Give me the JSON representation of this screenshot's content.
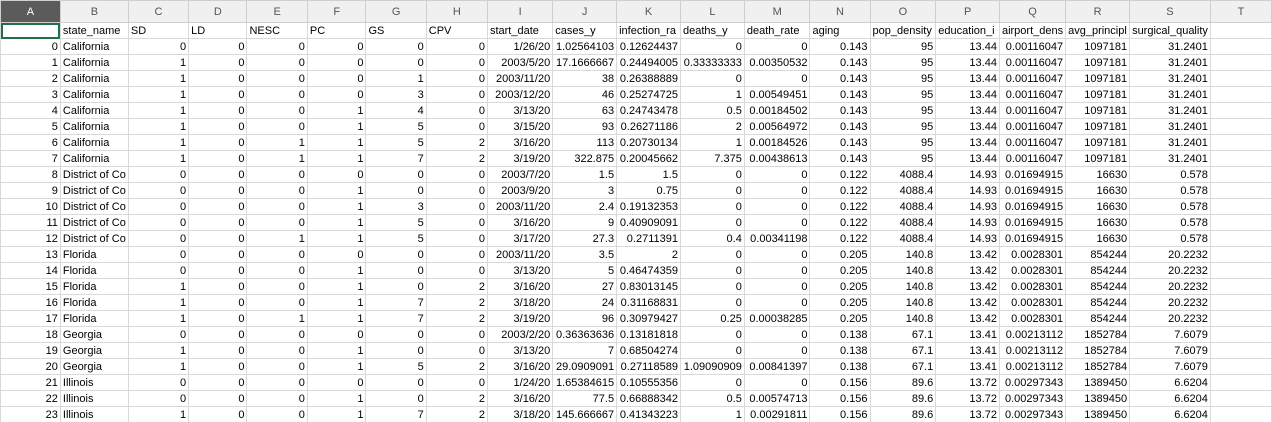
{
  "columns": [
    "A",
    "B",
    "C",
    "D",
    "E",
    "F",
    "G",
    "H",
    "I",
    "J",
    "K",
    "L",
    "M",
    "N",
    "O",
    "P",
    "Q",
    "R",
    "S",
    "T"
  ],
  "selected_column": "A",
  "header_row": [
    "",
    "state_name",
    "SD",
    "LD",
    "NESC",
    "PC",
    "GS",
    "CPV",
    "start_date",
    "cases_y",
    "infection_ra",
    "deaths_y",
    "death_rate",
    "aging",
    "pop_density",
    "education_i",
    "airport_dens",
    "avg_principl",
    "surgical_quality",
    ""
  ],
  "rows": [
    [
      "0",
      "California",
      "0",
      "0",
      "0",
      "0",
      "0",
      "0",
      "1/26/20",
      "1.02564103",
      "0.12624437",
      "0",
      "0",
      "0.143",
      "95",
      "13.44",
      "0.00116047",
      "1097181",
      "31.2401"
    ],
    [
      "1",
      "California",
      "1",
      "0",
      "0",
      "0",
      "0",
      "0",
      "2003/5/20",
      "17.1666667",
      "0.24494005",
      "0.33333333",
      "0.00350532",
      "0.143",
      "95",
      "13.44",
      "0.00116047",
      "1097181",
      "31.2401"
    ],
    [
      "2",
      "California",
      "1",
      "0",
      "0",
      "0",
      "1",
      "0",
      "2003/11/20",
      "38",
      "0.26388889",
      "0",
      "0",
      "0.143",
      "95",
      "13.44",
      "0.00116047",
      "1097181",
      "31.2401"
    ],
    [
      "3",
      "California",
      "1",
      "0",
      "0",
      "0",
      "3",
      "0",
      "2003/12/20",
      "46",
      "0.25274725",
      "1",
      "0.00549451",
      "0.143",
      "95",
      "13.44",
      "0.00116047",
      "1097181",
      "31.2401"
    ],
    [
      "4",
      "California",
      "1",
      "0",
      "0",
      "1",
      "4",
      "0",
      "3/13/20",
      "63",
      "0.24743478",
      "0.5",
      "0.00184502",
      "0.143",
      "95",
      "13.44",
      "0.00116047",
      "1097181",
      "31.2401"
    ],
    [
      "5",
      "California",
      "1",
      "0",
      "0",
      "1",
      "5",
      "0",
      "3/15/20",
      "93",
      "0.26271186",
      "2",
      "0.00564972",
      "0.143",
      "95",
      "13.44",
      "0.00116047",
      "1097181",
      "31.2401"
    ],
    [
      "6",
      "California",
      "1",
      "0",
      "1",
      "1",
      "5",
      "2",
      "3/16/20",
      "113",
      "0.20730134",
      "1",
      "0.00184526",
      "0.143",
      "95",
      "13.44",
      "0.00116047",
      "1097181",
      "31.2401"
    ],
    [
      "7",
      "California",
      "1",
      "0",
      "1",
      "1",
      "7",
      "2",
      "3/19/20",
      "322.875",
      "0.20045662",
      "7.375",
      "0.00438613",
      "0.143",
      "95",
      "13.44",
      "0.00116047",
      "1097181",
      "31.2401"
    ],
    [
      "8",
      "District of Co",
      "0",
      "0",
      "0",
      "0",
      "0",
      "0",
      "2003/7/20",
      "1.5",
      "1.5",
      "0",
      "0",
      "0.122",
      "4088.4",
      "14.93",
      "0.01694915",
      "16630",
      "0.578"
    ],
    [
      "9",
      "District of Co",
      "0",
      "0",
      "0",
      "1",
      "0",
      "0",
      "2003/9/20",
      "3",
      "0.75",
      "0",
      "0",
      "0.122",
      "4088.4",
      "14.93",
      "0.01694915",
      "16630",
      "0.578"
    ],
    [
      "10",
      "District of Co",
      "0",
      "0",
      "0",
      "1",
      "3",
      "0",
      "2003/11/20",
      "2.4",
      "0.19132353",
      "0",
      "0",
      "0.122",
      "4088.4",
      "14.93",
      "0.01694915",
      "16630",
      "0.578"
    ],
    [
      "11",
      "District of Co",
      "0",
      "0",
      "0",
      "1",
      "5",
      "0",
      "3/16/20",
      "9",
      "0.40909091",
      "0",
      "0",
      "0.122",
      "4088.4",
      "14.93",
      "0.01694915",
      "16630",
      "0.578"
    ],
    [
      "12",
      "District of Co",
      "0",
      "0",
      "1",
      "1",
      "5",
      "0",
      "3/17/20",
      "27.3",
      "0.2711391",
      "0.4",
      "0.00341198",
      "0.122",
      "4088.4",
      "14.93",
      "0.01694915",
      "16630",
      "0.578"
    ],
    [
      "13",
      "Florida",
      "0",
      "0",
      "0",
      "0",
      "0",
      "0",
      "2003/11/20",
      "3.5",
      "2",
      "0",
      "0",
      "0.205",
      "140.8",
      "13.42",
      "0.0028301",
      "854244",
      "20.2232"
    ],
    [
      "14",
      "Florida",
      "0",
      "0",
      "0",
      "1",
      "0",
      "0",
      "3/13/20",
      "5",
      "0.46474359",
      "0",
      "0",
      "0.205",
      "140.8",
      "13.42",
      "0.0028301",
      "854244",
      "20.2232"
    ],
    [
      "15",
      "Florida",
      "1",
      "0",
      "0",
      "1",
      "0",
      "2",
      "3/16/20",
      "27",
      "0.83013145",
      "0",
      "0",
      "0.205",
      "140.8",
      "13.42",
      "0.0028301",
      "854244",
      "20.2232"
    ],
    [
      "16",
      "Florida",
      "1",
      "0",
      "0",
      "1",
      "7",
      "2",
      "3/18/20",
      "24",
      "0.31168831",
      "0",
      "0",
      "0.205",
      "140.8",
      "13.42",
      "0.0028301",
      "854244",
      "20.2232"
    ],
    [
      "17",
      "Florida",
      "1",
      "0",
      "1",
      "1",
      "7",
      "2",
      "3/19/20",
      "96",
      "0.30979427",
      "0.25",
      "0.00038285",
      "0.205",
      "140.8",
      "13.42",
      "0.0028301",
      "854244",
      "20.2232"
    ],
    [
      "18",
      "Georgia",
      "0",
      "0",
      "0",
      "0",
      "0",
      "0",
      "2003/2/20",
      "0.36363636",
      "0.13181818",
      "0",
      "0",
      "0.138",
      "67.1",
      "13.41",
      "0.00213112",
      "1852784",
      "7.6079"
    ],
    [
      "19",
      "Georgia",
      "1",
      "0",
      "0",
      "1",
      "0",
      "0",
      "3/13/20",
      "7",
      "0.68504274",
      "0",
      "0",
      "0.138",
      "67.1",
      "13.41",
      "0.00213112",
      "1852784",
      "7.6079"
    ],
    [
      "20",
      "Georgia",
      "1",
      "0",
      "0",
      "1",
      "5",
      "2",
      "3/16/20",
      "29.0909091",
      "0.27118589",
      "1.09090909",
      "0.00841397",
      "0.138",
      "67.1",
      "13.41",
      "0.00213112",
      "1852784",
      "7.6079"
    ],
    [
      "21",
      "Illinois",
      "0",
      "0",
      "0",
      "0",
      "0",
      "0",
      "1/24/20",
      "1.65384615",
      "0.10555356",
      "0",
      "0",
      "0.156",
      "89.6",
      "13.72",
      "0.00297343",
      "1389450",
      "6.6204"
    ],
    [
      "22",
      "Illinois",
      "0",
      "0",
      "0",
      "1",
      "0",
      "2",
      "3/16/20",
      "77.5",
      "0.66888342",
      "0.5",
      "0.00574713",
      "0.156",
      "89.6",
      "13.72",
      "0.00297343",
      "1389450",
      "6.6204"
    ],
    [
      "23",
      "Illinois",
      "1",
      "0",
      "0",
      "1",
      "7",
      "2",
      "3/18/20",
      "145.666667",
      "0.41343223",
      "1",
      "0.00291811",
      "0.156",
      "89.6",
      "13.72",
      "0.00297343",
      "1389450",
      "6.6204"
    ]
  ]
}
